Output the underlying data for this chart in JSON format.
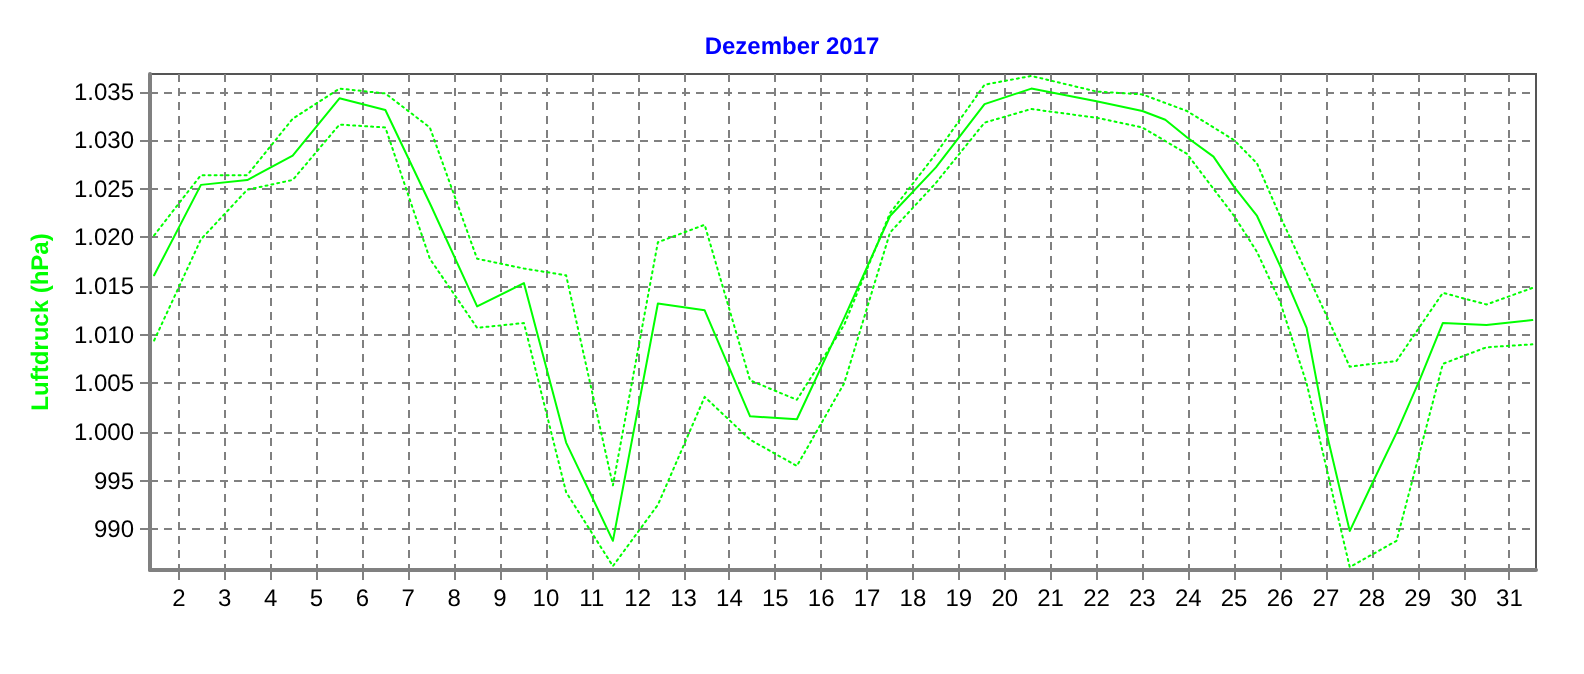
{
  "chart_data": {
    "type": "line",
    "title": "Dezember 2017",
    "ylabel": "Luftdruck (hPa)",
    "xlim": [
      1.37,
      31.58
    ],
    "xticks": [
      2,
      3,
      4,
      5,
      6,
      7,
      8,
      9,
      10,
      11,
      12,
      13,
      14,
      15,
      16,
      17,
      18,
      19,
      20,
      21,
      22,
      23,
      24,
      25,
      26,
      27,
      28,
      29,
      30,
      31
    ],
    "ylim": [
      985.8,
      1036.8
    ],
    "yticks": [
      {
        "value": 990,
        "label": "990"
      },
      {
        "value": 995,
        "label": "995"
      },
      {
        "value": 1000,
        "label": "1.000"
      },
      {
        "value": 1005,
        "label": "1.005"
      },
      {
        "value": 1010,
        "label": "1.010"
      },
      {
        "value": 1015,
        "label": "1.015"
      },
      {
        "value": 1020,
        "label": "1.020"
      },
      {
        "value": 1025,
        "label": "1.025"
      },
      {
        "value": 1030,
        "label": "1.030"
      },
      {
        "value": 1035,
        "label": "1.035"
      }
    ],
    "grid": true,
    "marker": "none",
    "series": [
      {
        "color": "#00ff00",
        "line_style": "dotted",
        "x": [
          1.46,
          2.0,
          2.48,
          3.49,
          4.48,
          5.5,
          6.5,
          7.47,
          8.5,
          9.52,
          10.44,
          11.46,
          12.44,
          13.46,
          14.45,
          15.47,
          16.5,
          17.5,
          18.5,
          19.56,
          20.58,
          22,
          23,
          23.97,
          25,
          25.5,
          26,
          27,
          27.52,
          28.54,
          29.55,
          30.5,
          31.5
        ],
        "values": [
          1020.2,
          1023.5,
          1026.4,
          1026.4,
          1032.2,
          1035.3,
          1034.8,
          1031.3,
          1017.8,
          1016.8,
          1016.1,
          994.5,
          1019.5,
          1021.3,
          1005.3,
          1003.3,
          1011.0,
          1022.5,
          1028.6,
          1035.7,
          1036.6,
          1035.0,
          1034.7,
          1033.0,
          1030.0,
          1027.6,
          1022.2,
          1012.1,
          1006.7,
          1007.3,
          1014.3,
          1013.1,
          1014.8
        ]
      },
      {
        "color": "#00ff00",
        "line_style": "solid",
        "x": [
          1.46,
          2.48,
          3.49,
          4.48,
          5.5,
          6.5,
          7.5,
          8.5,
          9.52,
          10.44,
          11.46,
          12.44,
          13.46,
          14.45,
          15.47,
          16.5,
          17.5,
          18.5,
          19.56,
          20.58,
          22,
          23,
          23.5,
          23.97,
          24.55,
          25,
          25.5,
          26,
          26.58,
          27,
          27.52,
          28.03,
          28.54,
          29.04,
          29.55,
          30.5,
          31.5
        ],
        "values": [
          1016.1,
          1025.4,
          1025.9,
          1028.4,
          1034.3,
          1033.1,
          1023.2,
          1012.9,
          1015.3,
          998.9,
          988.8,
          1013.2,
          1012.5,
          1001.6,
          1001.3,
          1011.7,
          1022.2,
          1027.2,
          1033.7,
          1035.3,
          1034.0,
          1033.0,
          1032.1,
          1030.3,
          1028.3,
          1025.2,
          1022.2,
          1017.1,
          1010.7,
          1000.2,
          989.8,
          994.9,
          999.9,
          1005.3,
          1011.2,
          1011.0,
          1011.5
        ]
      },
      {
        "color": "#00ff00",
        "line_style": "dotted",
        "x": [
          1.46,
          2.48,
          3.49,
          4.48,
          5.5,
          6.5,
          7.47,
          8.5,
          9.52,
          10.44,
          11.46,
          12.44,
          13.46,
          14.45,
          15.47,
          16.5,
          17.5,
          18.5,
          19.56,
          20.58,
          22,
          23,
          23.97,
          25,
          25.5,
          26,
          26.58,
          27.52,
          28.54,
          29.55,
          30.5,
          31.5
        ],
        "values": [
          1009.4,
          1019.8,
          1024.9,
          1025.9,
          1031.6,
          1031.3,
          1017.8,
          1010.7,
          1011.2,
          993.8,
          986.2,
          992.5,
          1003.6,
          999.2,
          996.5,
          1005.0,
          1020.5,
          1025.6,
          1031.8,
          1033.2,
          1032.3,
          1031.3,
          1028.6,
          1022.2,
          1018.5,
          1013.4,
          1005.0,
          986.1,
          988.8,
          1007.0,
          1008.7,
          1009.0
        ]
      }
    ]
  }
}
